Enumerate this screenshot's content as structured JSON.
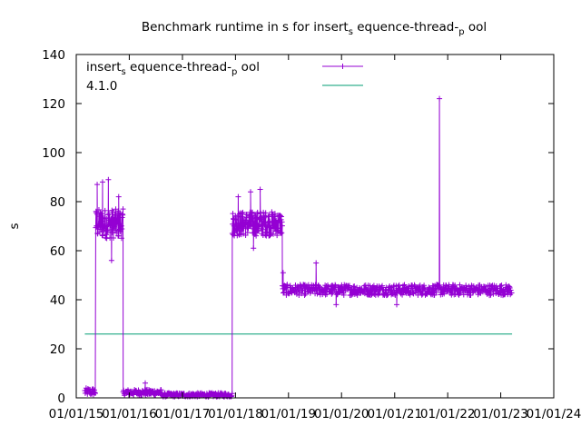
{
  "chart_data": {
    "type": "line",
    "title_parts": [
      {
        "text": "Benchmark runtime in s for insert"
      },
      {
        "text": "s",
        "sub": true
      },
      {
        "text": " equence-thread-"
      },
      {
        "text": "p",
        "sub": true
      },
      {
        "text": " ool"
      }
    ],
    "ylabel": "s",
    "xlabel": "",
    "ylim": [
      0,
      140
    ],
    "yticks": [
      0,
      20,
      40,
      60,
      80,
      100,
      120,
      140
    ],
    "xlim": [
      "2015-01-01",
      "2024-01-01"
    ],
    "xticks": [
      "01/01/15",
      "01/01/16",
      "01/01/17",
      "01/01/18",
      "01/01/19",
      "01/01/20",
      "01/01/21",
      "01/01/22",
      "01/01/23",
      "01/01/24"
    ],
    "grid": false,
    "legend_position": "top-left",
    "series": [
      {
        "name_parts": [
          {
            "text": "insert"
          },
          {
            "text": "s",
            "sub": true
          },
          {
            "text": " equence-thread-"
          },
          {
            "text": "p",
            "sub": true
          },
          {
            "text": " ool"
          }
        ],
        "color": "#9400d3",
        "style": "line-with-plus-markers",
        "segments": [
          {
            "from": "2015-03-01",
            "to": "2015-05-15",
            "base": 2.5,
            "spread": 1.5,
            "step_days": 3
          },
          {
            "from": "2015-05-15",
            "to": "2015-11-20",
            "base": 71,
            "spread": 6,
            "step_days": 2
          },
          {
            "from": "2015-11-20",
            "to": "2016-08-10",
            "base": 2.2,
            "spread": 1.2,
            "step_days": 3
          },
          {
            "from": "2016-08-10",
            "to": "2017-12-10",
            "base": 1.2,
            "spread": 0.8,
            "step_days": 3
          },
          {
            "from": "2017-12-10",
            "to": "2018-11-20",
            "base": 71,
            "spread": 5,
            "step_days": 2
          },
          {
            "from": "2018-11-20",
            "to": "2023-03-20",
            "base": 44,
            "spread": 2.2,
            "step_days": 3
          }
        ],
        "spikes": [
          {
            "x": "2015-05-25",
            "y": 87
          },
          {
            "x": "2015-07-01",
            "y": 88
          },
          {
            "x": "2015-08-10",
            "y": 89
          },
          {
            "x": "2015-09-01",
            "y": 56
          },
          {
            "x": "2015-10-20",
            "y": 82
          },
          {
            "x": "2018-01-20",
            "y": 82
          },
          {
            "x": "2018-04-15",
            "y": 84
          },
          {
            "x": "2018-06-20",
            "y": 85
          },
          {
            "x": "2018-05-05",
            "y": 61
          },
          {
            "x": "2018-11-25",
            "y": 51
          },
          {
            "x": "2019-07-10",
            "y": 55
          },
          {
            "x": "2019-11-25",
            "y": 38
          },
          {
            "x": "2021-01-15",
            "y": 38
          },
          {
            "x": "2021-11-05",
            "y": 122
          },
          {
            "x": "2016-04-20",
            "y": 6
          }
        ]
      },
      {
        "name": "4.1.0",
        "color": "#009e73",
        "style": "line",
        "x": [
          "2015-03-01",
          "2023-03-20"
        ],
        "y": [
          26,
          26
        ]
      }
    ]
  }
}
